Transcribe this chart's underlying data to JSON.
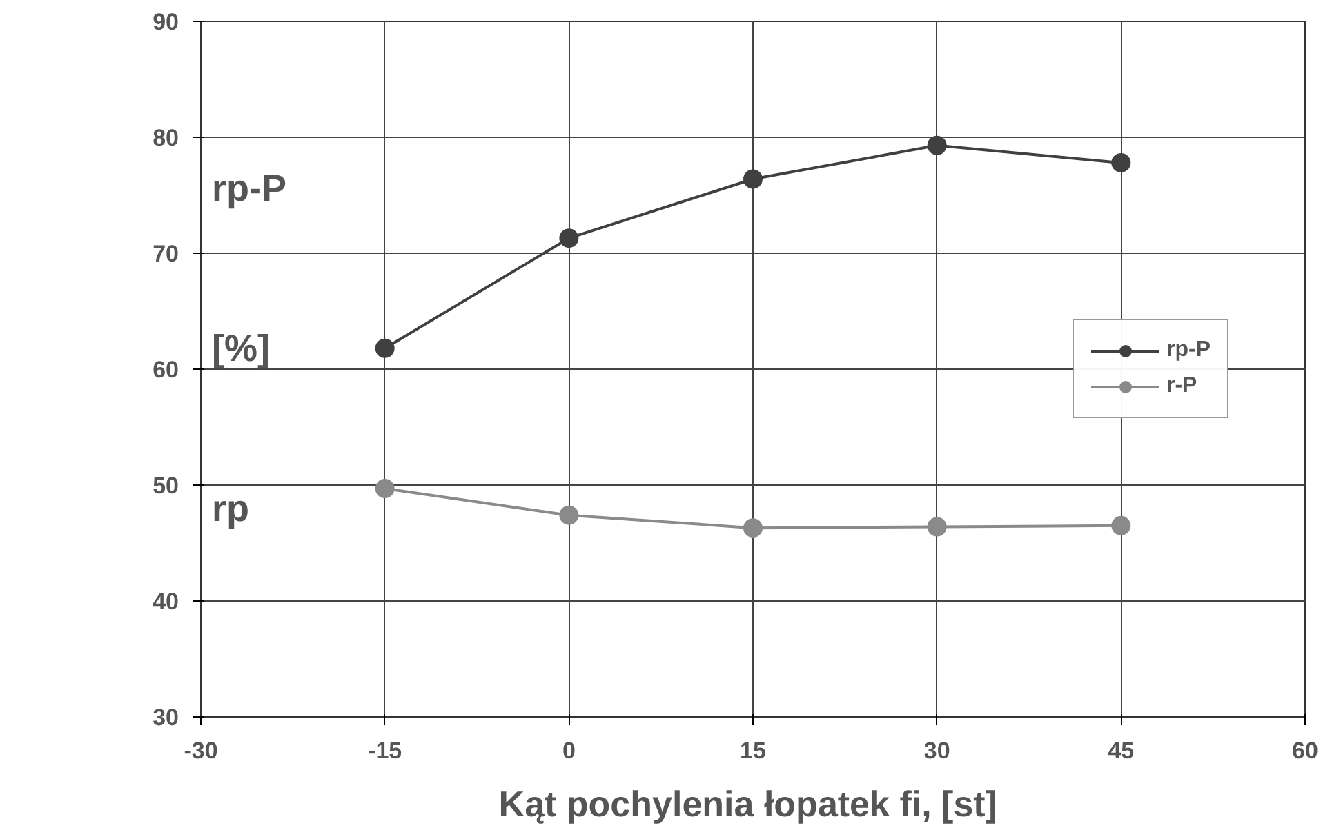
{
  "chart_data": {
    "type": "line",
    "xlabel": "Kąt pochylenia łopatek  fi, [st]",
    "ylabel": "rp-P\n[%]\nrp",
    "x": [
      -15,
      0,
      15,
      30,
      45
    ],
    "series": [
      {
        "name": "rp-P",
        "color": "#404040",
        "values": [
          61.8,
          71.3,
          76.4,
          79.3,
          77.8
        ]
      },
      {
        "name": "r-P",
        "color": "#8a8a8a",
        "values": [
          49.7,
          47.4,
          46.3,
          46.4,
          46.5
        ]
      }
    ],
    "xlim": [
      -30,
      60
    ],
    "xticks": [
      -30,
      -15,
      0,
      15,
      30,
      45,
      60
    ],
    "ylim": [
      30,
      90
    ],
    "yticks": [
      30,
      40,
      50,
      60,
      70,
      80,
      90
    ],
    "grid": true,
    "legend": "right",
    "marker": "circle",
    "line_style": "solid"
  }
}
